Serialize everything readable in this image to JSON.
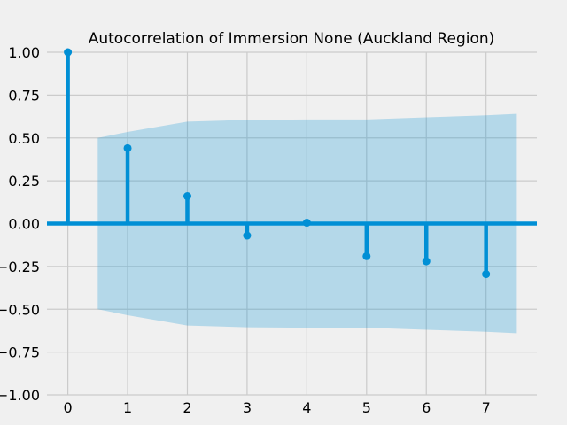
{
  "chart_data": {
    "type": "stem",
    "title": "Autocorrelation of Immersion None (Auckland Region)",
    "xlabel": "",
    "ylabel": "",
    "xlim": [
      -0.35,
      7.85
    ],
    "ylim": [
      -1.0,
      1.0
    ],
    "x_ticks": [
      0,
      1,
      2,
      3,
      4,
      5,
      6,
      7
    ],
    "y_ticks": [
      -1.0,
      -0.75,
      -0.5,
      -0.25,
      0.0,
      0.25,
      0.5,
      0.75,
      1.0
    ],
    "y_tick_labels": [
      "−1.00",
      "−0.75",
      "−0.50",
      "−0.25",
      "0.00",
      "0.25",
      "0.50",
      "0.75",
      "1.00"
    ],
    "grid": true,
    "series": [
      {
        "lags": [
          0,
          1,
          2,
          3,
          4,
          5,
          6,
          7
        ],
        "values": [
          1.0,
          0.44,
          0.16,
          -0.07,
          0.005,
          -0.19,
          -0.22,
          -0.295
        ]
      }
    ],
    "confidence_band": {
      "x": [
        0.5,
        1,
        2,
        3,
        4,
        5,
        6,
        7,
        7.5
      ],
      "upper": [
        0.5,
        0.535,
        0.595,
        0.605,
        0.608,
        0.608,
        0.62,
        0.632,
        0.64
      ],
      "lower": [
        -0.5,
        -0.535,
        -0.595,
        -0.605,
        -0.608,
        -0.608,
        -0.62,
        -0.632,
        -0.64
      ]
    },
    "colors": {
      "stem": "#008fd5",
      "band": "#008fd5",
      "grid": "#cbcbcb",
      "background": "#f0f0f0"
    }
  }
}
